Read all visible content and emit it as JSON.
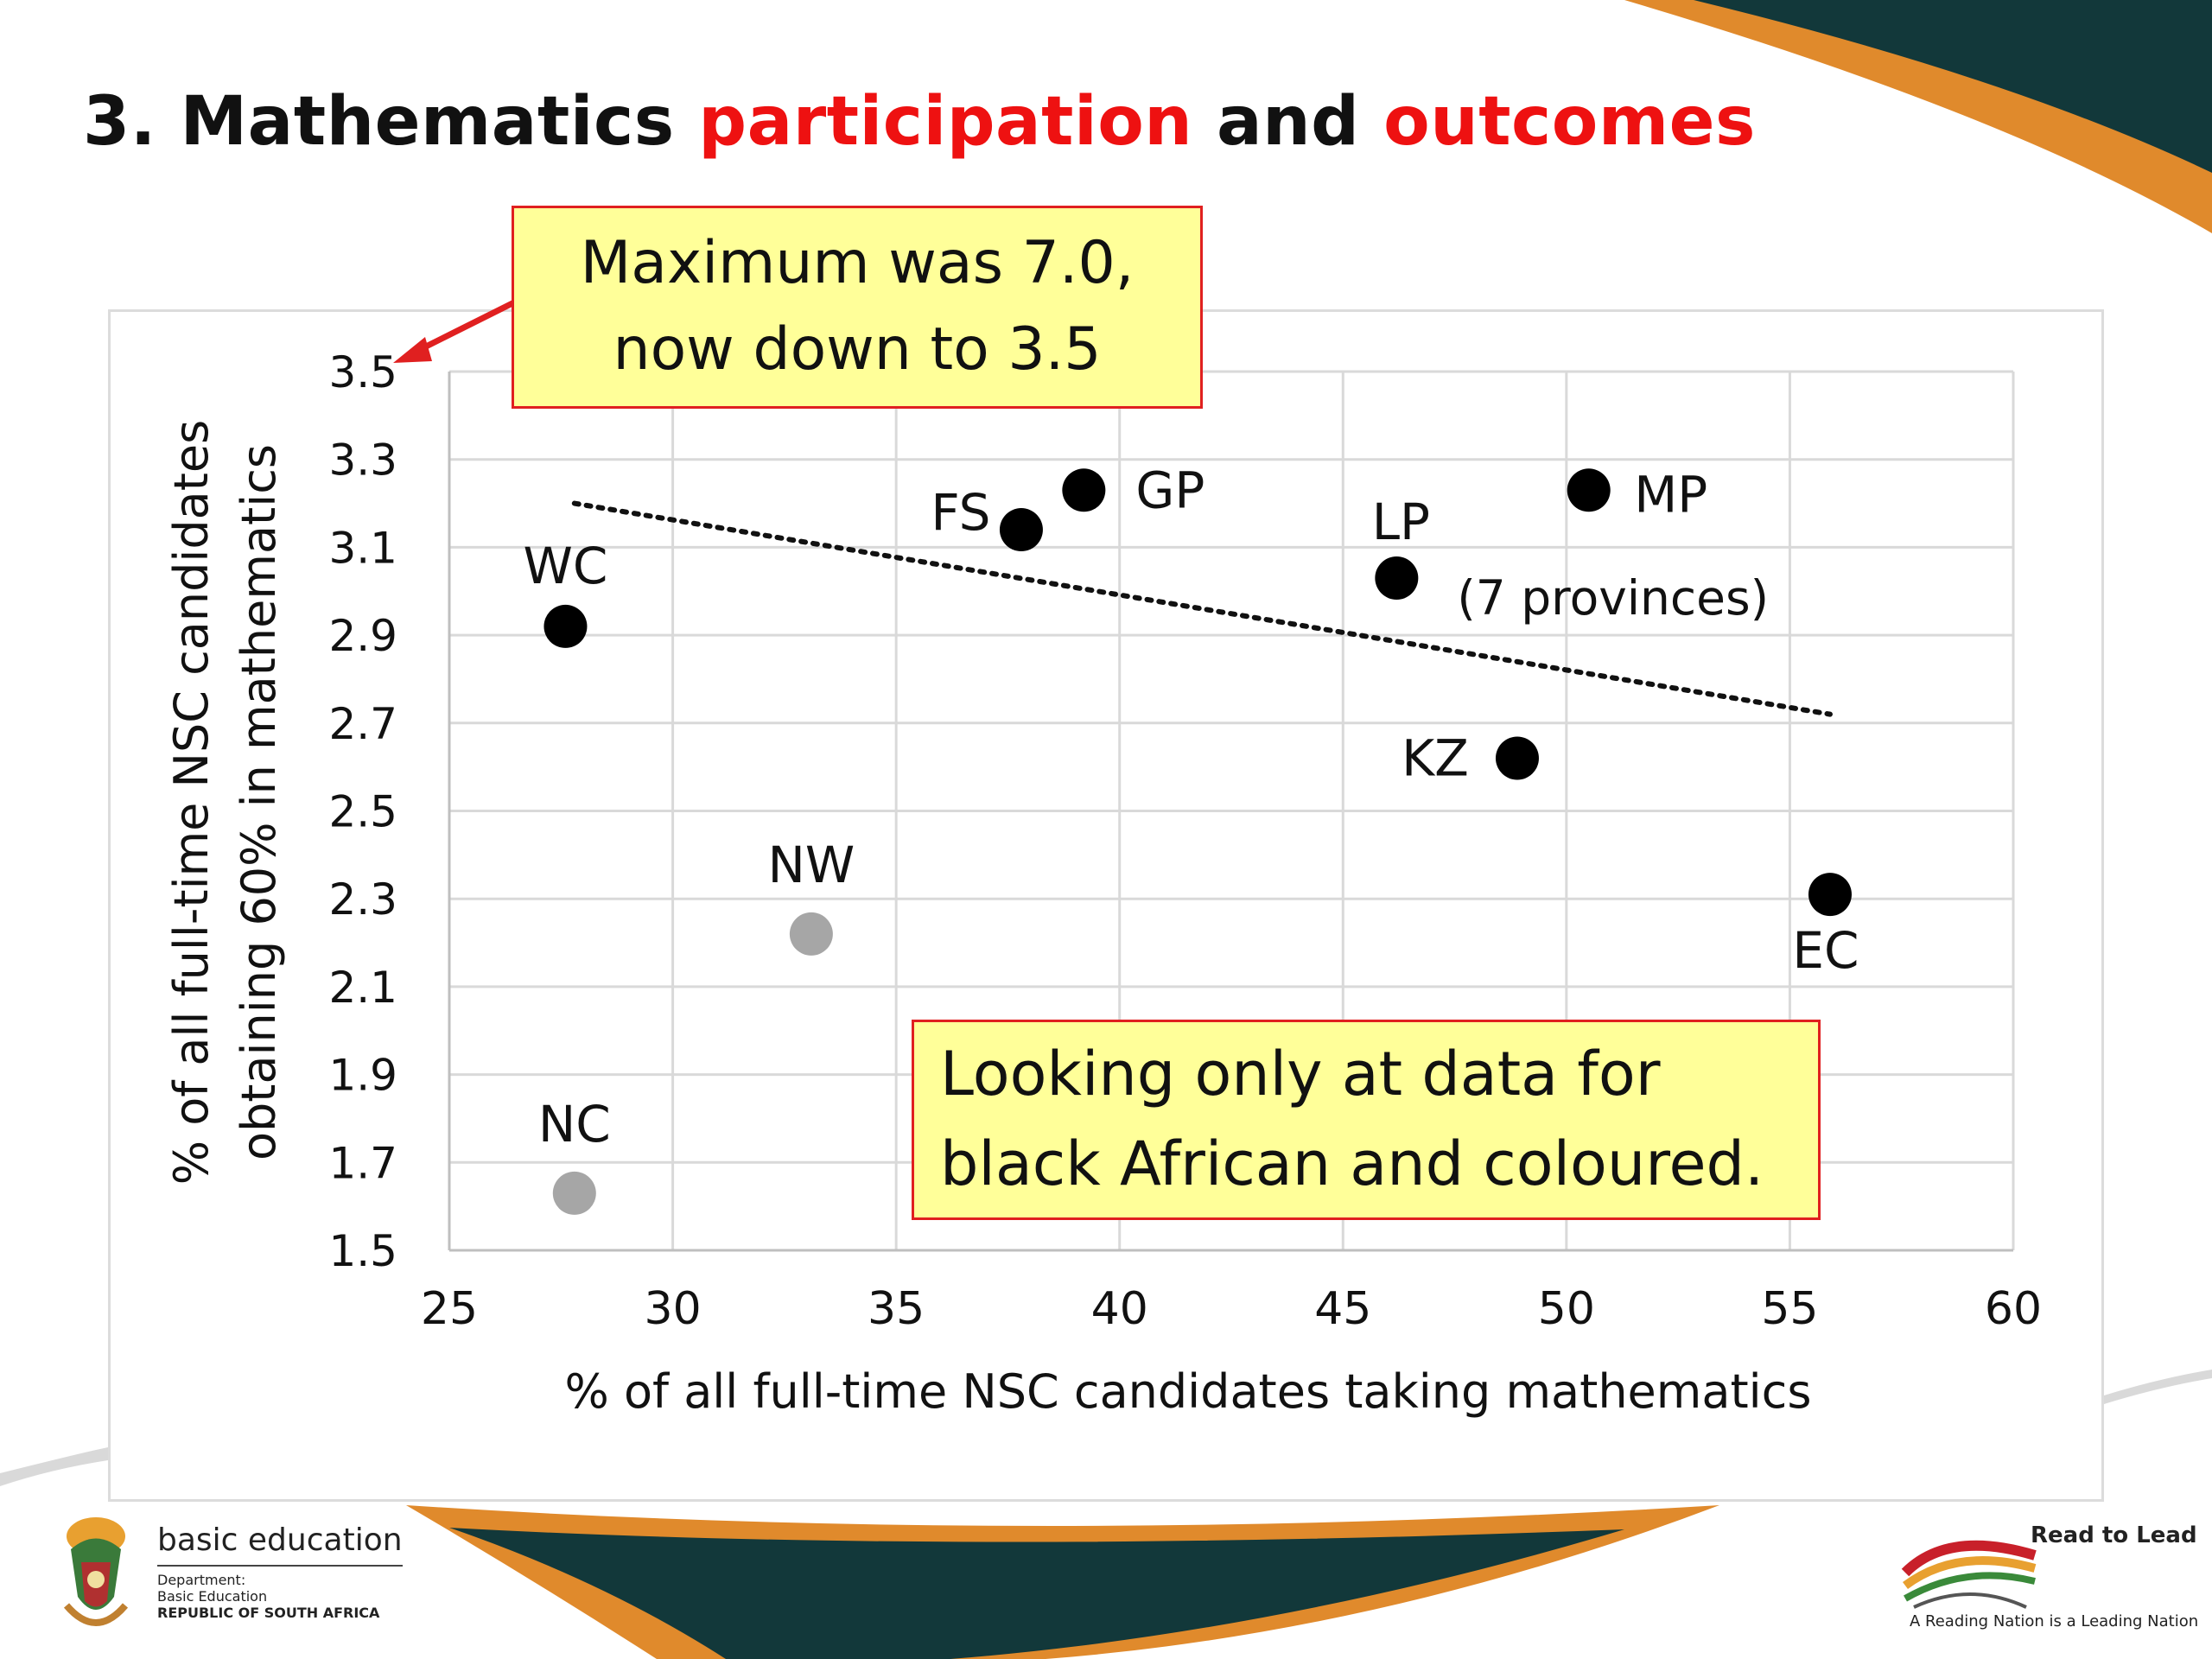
{
  "slide": {
    "title_parts": [
      "3. Mathematics ",
      "participation",
      " and ",
      "outcomes"
    ],
    "colors": {
      "title": "#111111",
      "highlight": "#ee1111",
      "accent_orange": "#e08a2c",
      "accent_green": "#12383a"
    }
  },
  "callouts": {
    "max_line1": "Maximum was 7.0,",
    "max_line2": "now down to 3.5",
    "note_line1": "Looking only at data for",
    "note_line2": "black African and coloured."
  },
  "footer": {
    "brand_name": "basic education",
    "brand_line1": "Department:",
    "brand_line2": "Basic Education",
    "brand_line3": "REPUBLIC OF SOUTH AFRICA",
    "read_to_lead": "Read to Lead",
    "tagline": "A Reading Nation is a Leading Nation"
  },
  "chart_data": {
    "type": "scatter",
    "xlabel": "% of all full-time NSC candidates taking mathematics",
    "ylabel_line1": "% of all full-time NSC candidates",
    "ylabel_line2": "obtaining 60% in mathematics",
    "xlim": [
      25,
      60
    ],
    "ylim": [
      1.5,
      3.5
    ],
    "xticks": [
      "25",
      "30",
      "35",
      "40",
      "45",
      "50",
      "55",
      "60"
    ],
    "yticks": [
      "1.5",
      "1.7",
      "1.9",
      "2.1",
      "2.3",
      "2.5",
      "2.7",
      "2.9",
      "3.1",
      "3.3",
      "3.5"
    ],
    "grid": true,
    "points": [
      {
        "label": "WC",
        "x": 27.6,
        "y": 2.92,
        "color": "#000000"
      },
      {
        "label": "FS",
        "x": 37.8,
        "y": 3.14,
        "color": "#000000"
      },
      {
        "label": "GP",
        "x": 39.2,
        "y": 3.23,
        "color": "#000000"
      },
      {
        "label": "LP",
        "x": 46.2,
        "y": 3.03,
        "color": "#000000"
      },
      {
        "label": "MP",
        "x": 50.5,
        "y": 3.23,
        "color": "#000000"
      },
      {
        "label": "KZ",
        "x": 48.9,
        "y": 2.62,
        "color": "#000000"
      },
      {
        "label": "EC",
        "x": 55.9,
        "y": 2.31,
        "color": "#000000"
      },
      {
        "label": "NW",
        "x": 33.1,
        "y": 2.22,
        "color": "#a6a6a6"
      },
      {
        "label": "NC",
        "x": 27.8,
        "y": 1.63,
        "color": "#a6a6a6"
      }
    ],
    "annotation": "(7 provinces)",
    "trendline": {
      "x": [
        27.8,
        55.9
      ],
      "y": [
        3.2,
        2.72
      ],
      "style": "dotted"
    }
  }
}
